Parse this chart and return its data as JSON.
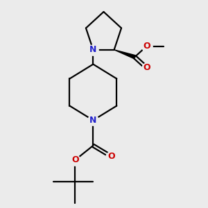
{
  "background_color": "#ebebeb",
  "bond_color": "#000000",
  "N_color": "#2222cc",
  "O_color": "#cc0000",
  "line_width": 1.6,
  "figsize": [
    3.0,
    3.0
  ],
  "dpi": 100,
  "xlim": [
    -1.6,
    2.0
  ],
  "ylim": [
    -2.9,
    2.8
  ]
}
